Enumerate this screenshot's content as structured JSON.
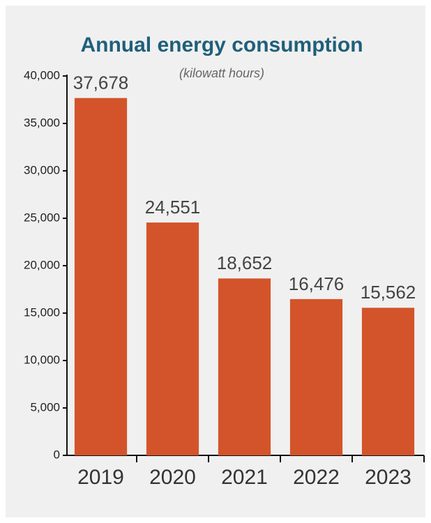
{
  "chart_data": {
    "type": "bar",
    "title": "Annual energy consumption",
    "subtitle": "(kilowatt hours)",
    "categories": [
      "2019",
      "2020",
      "2021",
      "2022",
      "2023"
    ],
    "values": [
      37678,
      24551,
      18652,
      16476,
      15562
    ],
    "value_labels": [
      "37,678",
      "24,551",
      "18,652",
      "16,476",
      "15,562"
    ],
    "color": "#d3542a",
    "ylim": [
      0,
      40000
    ],
    "yticks": [
      0,
      {
        "value": 5000,
        "label": "5,000"
      },
      {
        "value": 10000,
        "label": "10,000"
      },
      {
        "value": 15000,
        "label": "15,000"
      },
      {
        "value": 20000,
        "label": "20,000"
      },
      {
        "value": 25000,
        "label": "25,000"
      },
      {
        "value": 30000,
        "label": "30,000"
      },
      {
        "value": 35000,
        "label": "35,000"
      },
      {
        "value": 40000,
        "label": "40,000"
      }
    ],
    "grid": false
  }
}
